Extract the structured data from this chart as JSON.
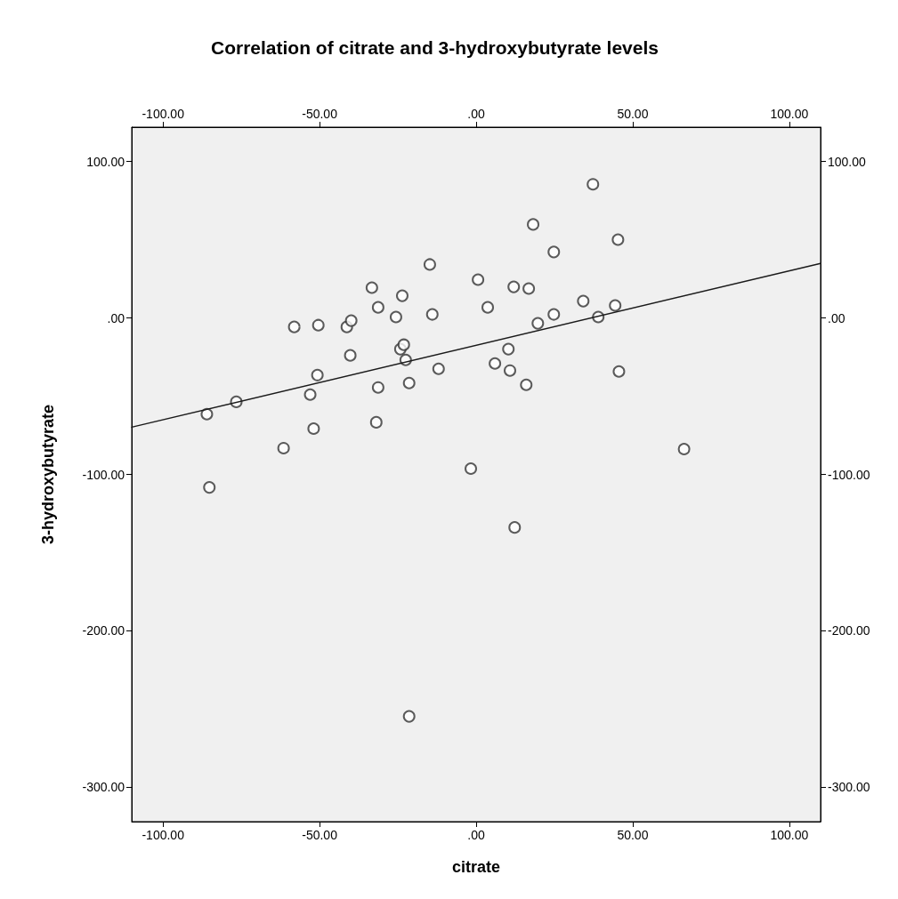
{
  "chart_data": {
    "type": "scatter",
    "title": "Correlation of citrate and 3-hydroxybutyrate levels",
    "xlabel": "citrate",
    "ylabel": "3-hydroxybutyrate",
    "xlim": [
      -110,
      110
    ],
    "xticks": [
      {
        "value": -100,
        "label": "-100.00"
      },
      {
        "value": -50,
        "label": "-50.00"
      },
      {
        "value": 0,
        "label": ".00"
      },
      {
        "value": 50,
        "label": "50.00"
      },
      {
        "value": 100,
        "label": "100.00"
      }
    ],
    "x2lim": [
      -110,
      110
    ],
    "x2ticks": [
      {
        "value": -100,
        "label": "-100.00"
      },
      {
        "value": -50,
        "label": "-50.00"
      },
      {
        "value": 0,
        "label": ".00"
      },
      {
        "value": 50,
        "label": "50.00"
      },
      {
        "value": 100,
        "label": "100.00"
      }
    ],
    "ylim": [
      -322,
      122
    ],
    "yticks": [
      {
        "value": -300,
        "label": "-300.00"
      },
      {
        "value": -200,
        "label": "-200.00"
      },
      {
        "value": -100,
        "label": "-100.00"
      },
      {
        "value": 0,
        "label": ".00"
      },
      {
        "value": 100,
        "label": "100.00"
      }
    ],
    "y2lim": [
      -322,
      122
    ],
    "y2ticks": [
      {
        "value": -300,
        "label": "-300.00"
      },
      {
        "value": -200,
        "label": "-200.00"
      },
      {
        "value": -100,
        "label": "-100.00"
      },
      {
        "value": 0,
        "label": ".00"
      },
      {
        "value": 100,
        "label": "100.00"
      }
    ],
    "grid": false,
    "marker": "circle",
    "series": [
      {
        "color": "#333333",
        "x": [
          -86.0,
          -76.6,
          -85.2,
          -61.5,
          -58.1,
          -50.4,
          -50.7,
          -53.0,
          -51.9,
          -41.3,
          -39.9,
          -40.2,
          -33.3,
          -31.3,
          -31.3,
          -31.9,
          -25.6,
          -23.6,
          -24.2,
          -23.1,
          -22.5,
          -21.4,
          -14.8,
          -14.0,
          -12.0,
          -1.7,
          0.6,
          3.7,
          6.0,
          10.3,
          10.8,
          12.0,
          16.0,
          16.8,
          18.2,
          19.7,
          24.8,
          24.8,
          12.3,
          34.2,
          37.3,
          39.0,
          44.4,
          45.3,
          45.6,
          66.4,
          -21.4
        ],
        "values": [
          -61.5,
          -53.6,
          -108.3,
          -83.2,
          -5.7,
          -4.6,
          -36.5,
          -49.0,
          -70.7,
          -5.7,
          -1.7,
          -23.9,
          19.4,
          6.8,
          -44.4,
          -66.7,
          0.6,
          14.2,
          -19.9,
          -17.1,
          -26.8,
          -41.6,
          34.2,
          2.3,
          -32.5,
          -96.3,
          24.5,
          6.8,
          -29.1,
          -19.9,
          -33.6,
          19.9,
          -42.7,
          18.8,
          59.8,
          -3.4,
          42.2,
          2.3,
          -133.9,
          10.8,
          85.5,
          0.6,
          8.0,
          50.1,
          -34.2,
          -83.8,
          -254.7
        ]
      },
      {
        "type": "line",
        "color": "#1a1a1a",
        "marker": "none",
        "line_style": "solid",
        "x": [
          -110,
          110
        ],
        "values": [
          -69.8,
          34.9
        ]
      }
    ]
  }
}
